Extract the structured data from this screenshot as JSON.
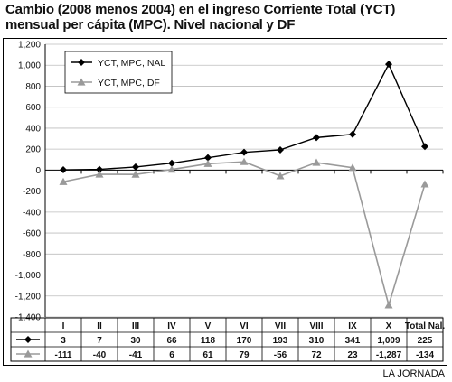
{
  "title": "Cambio (2008 menos 2004) en el ingreso Corriente Total (YCT) mensual per cápita (MPC). Nivel nacional y DF",
  "credit": "LA JORNADA",
  "colors": {
    "series_nal": "#000000",
    "series_df": "#9a9a9a",
    "grid": "#bdbdbd"
  },
  "chart_data": {
    "type": "line",
    "categories": [
      "I",
      "II",
      "III",
      "IV",
      "V",
      "VI",
      "VII",
      "VIII",
      "IX",
      "X",
      "Total Nal."
    ],
    "series": [
      {
        "name": "YCT, MPC, NAL",
        "marker": "diamond",
        "values": [
          3,
          7,
          30,
          66,
          118,
          170,
          193,
          310,
          341,
          1009,
          225
        ],
        "labels": [
          "3",
          "7",
          "30",
          "66",
          "118",
          "170",
          "193",
          "310",
          "341",
          "1,009",
          "225"
        ]
      },
      {
        "name": "YCT, MPC, DF",
        "marker": "triangle",
        "values": [
          -111,
          -40,
          -41,
          6,
          61,
          79,
          -56,
          72,
          23,
          -1287,
          -134
        ],
        "labels": [
          "-111",
          "-40",
          "-41",
          "6",
          "61",
          "79",
          "-56",
          "72",
          "23",
          "-1,287",
          "-134"
        ]
      }
    ],
    "ylim": [
      -1400,
      1200
    ],
    "yticks": [
      1200,
      1000,
      800,
      600,
      400,
      200,
      0,
      -200,
      -400,
      -600,
      -800,
      -1000,
      -1200,
      -1400
    ],
    "ytick_labels": [
      "1,200",
      "1,000",
      "800",
      "600",
      "400",
      "200",
      "0",
      "-200",
      "-400",
      "-600",
      "-800",
      "-1,000",
      "-1,200",
      "-1,400"
    ],
    "grid": true,
    "legend_position": "top-left",
    "data_table": true
  }
}
